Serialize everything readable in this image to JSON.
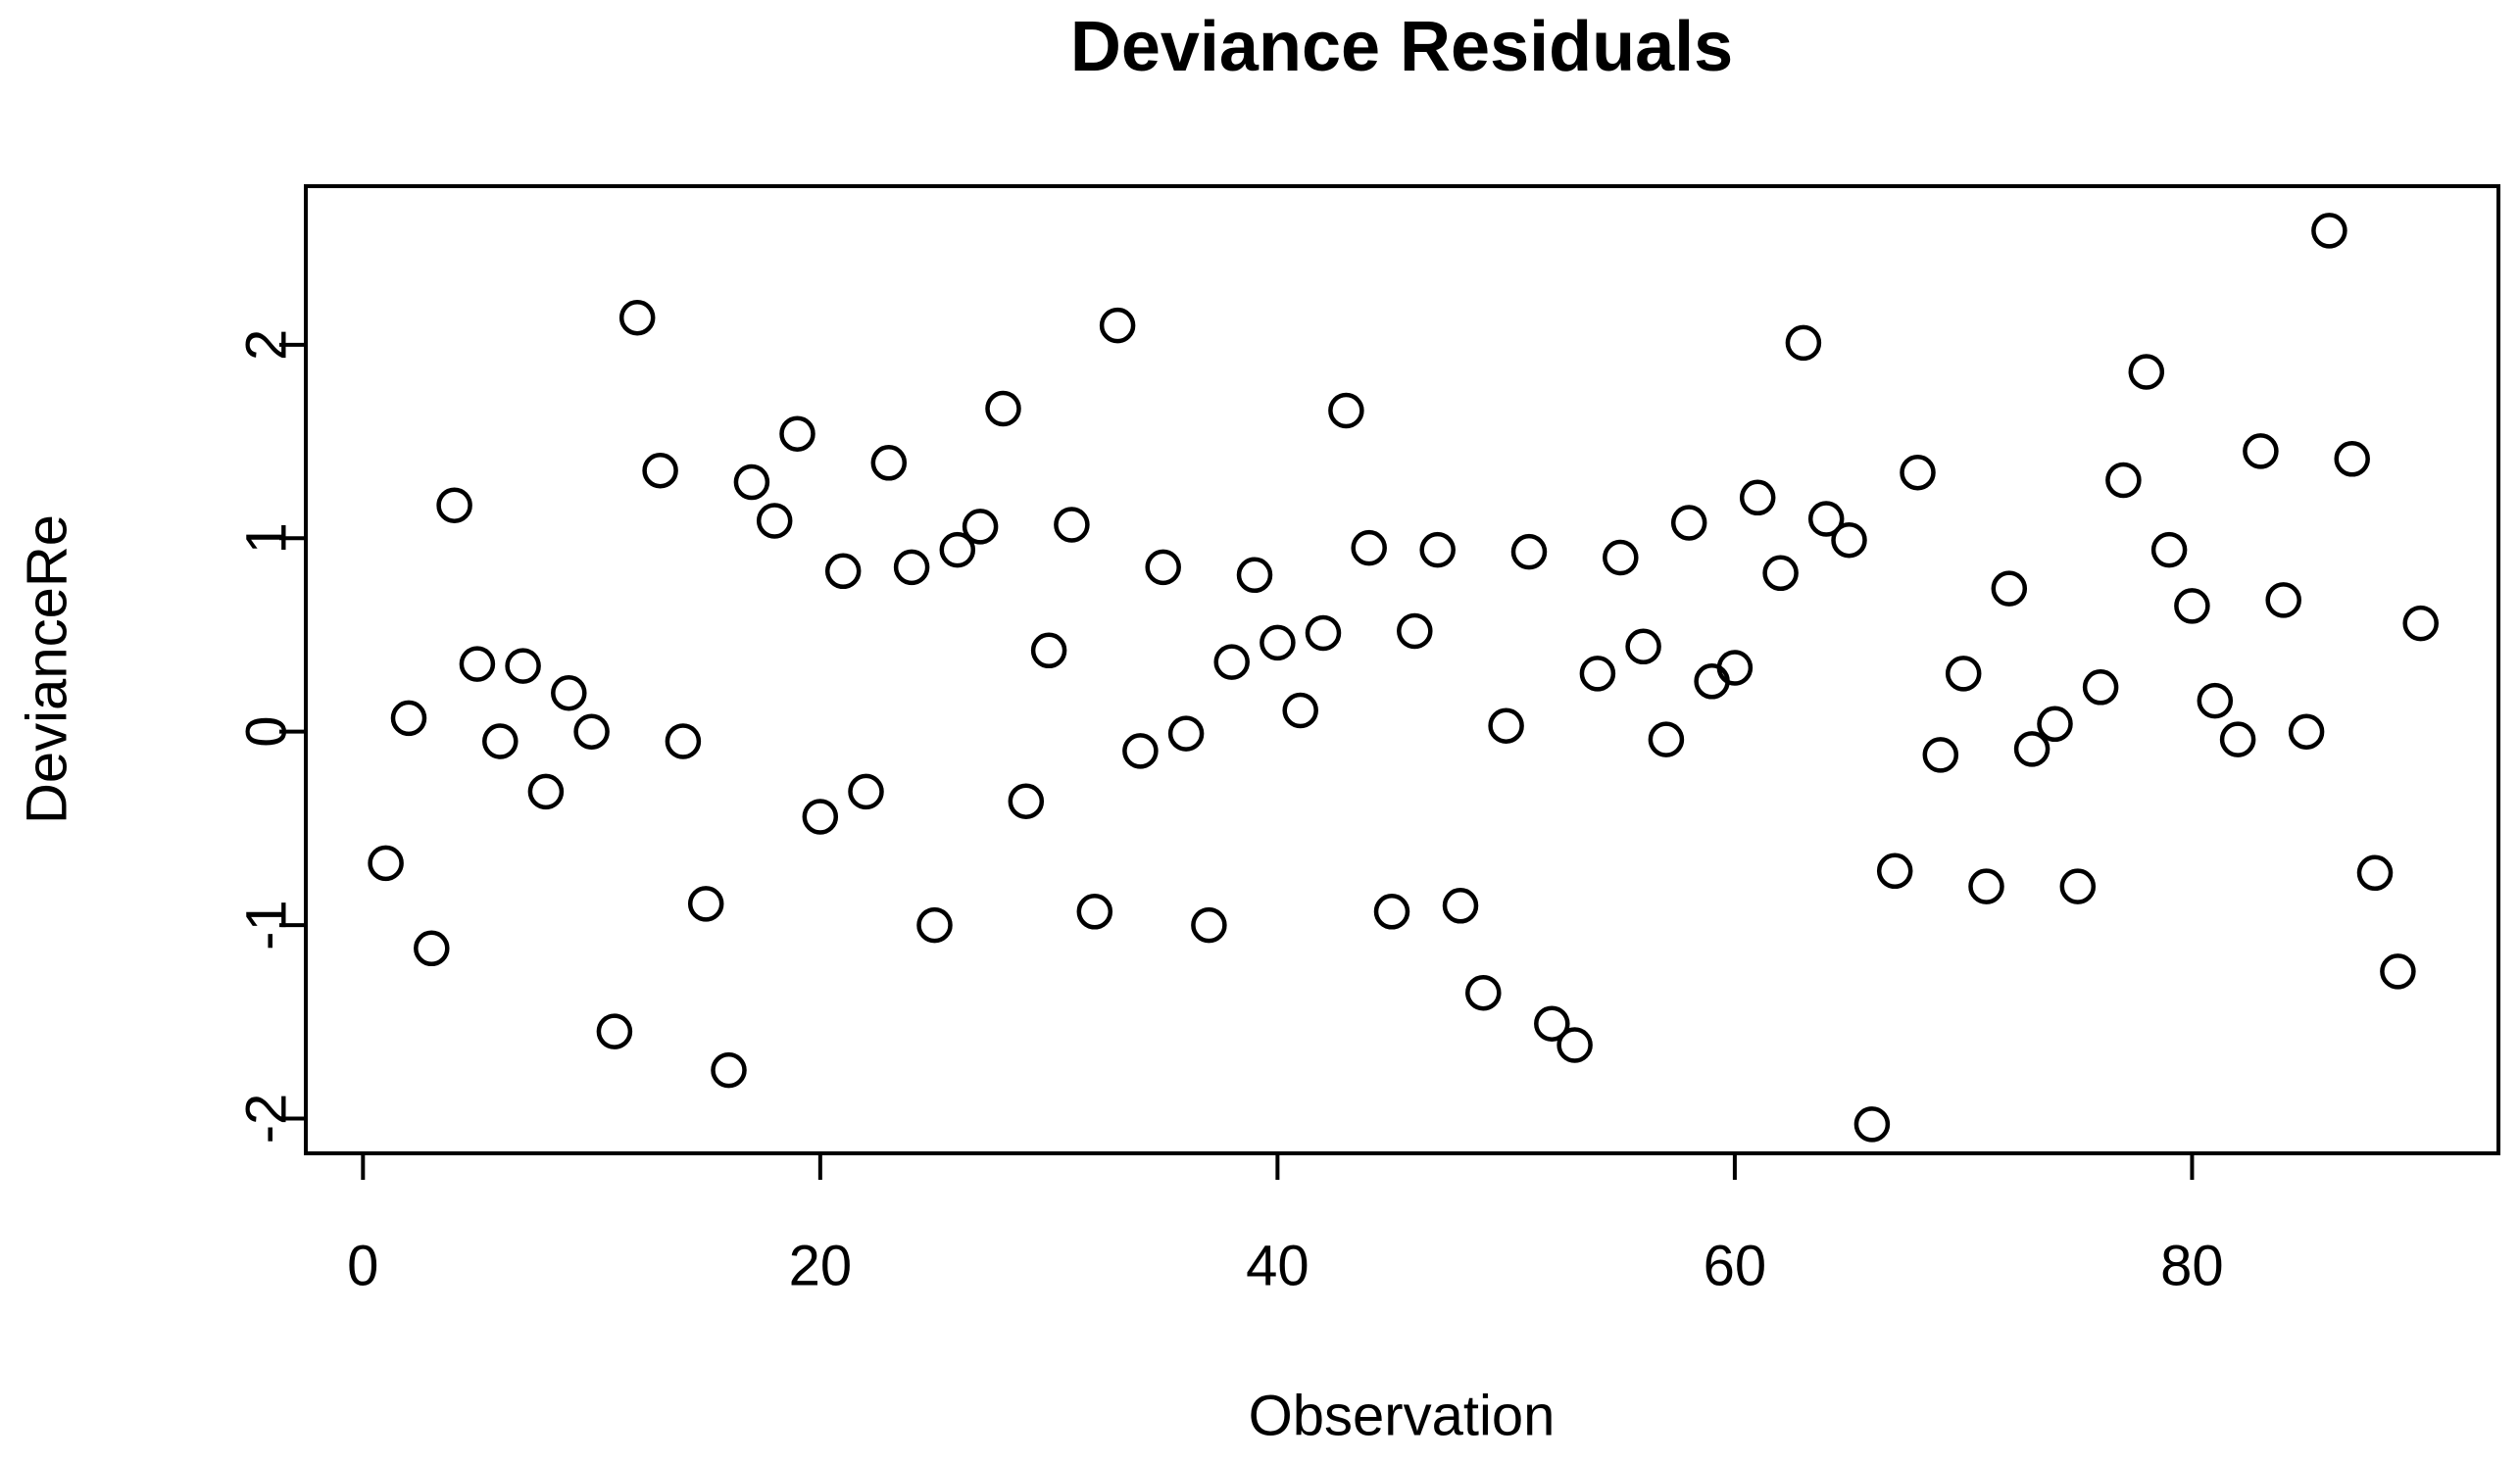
{
  "title": "Deviance Residuals",
  "colors": {
    "background": "#ffffff",
    "foreground": "#000000",
    "marker_stroke": "#000000",
    "marker_fill": "none"
  },
  "chart_data": {
    "type": "scatter",
    "title": "Deviance Residuals",
    "xlabel": "Observation",
    "ylabel": "DevianceRe",
    "marker": "open-circle",
    "grid": false,
    "legend": null,
    "xlim": [
      -2.5,
      93.4
    ],
    "ylim": [
      -2.18,
      2.82
    ],
    "xticks": [
      0,
      20,
      40,
      60,
      80
    ],
    "yticks": [
      -2,
      -1,
      0,
      1,
      2
    ],
    "xtick_labels": [
      "0",
      "20",
      "40",
      "60",
      "80"
    ],
    "ytick_labels": [
      "-2",
      "-1",
      "0",
      "1",
      "2"
    ],
    "x": [
      1,
      2,
      3,
      4,
      5,
      6,
      7,
      8,
      9,
      10,
      11,
      12,
      13,
      14,
      15,
      16,
      17,
      18,
      19,
      20,
      21,
      22,
      23,
      24,
      25,
      26,
      27,
      28,
      29,
      30,
      31,
      32,
      33,
      34,
      35,
      36,
      37,
      38,
      39,
      40,
      41,
      42,
      43,
      44,
      45,
      46,
      47,
      48,
      49,
      50,
      51,
      52,
      53,
      54,
      55,
      56,
      57,
      58,
      59,
      60,
      61,
      62,
      63,
      64,
      65,
      66,
      67,
      68,
      69,
      70,
      71,
      72,
      73,
      74,
      75,
      76,
      77,
      78,
      79,
      80,
      81,
      82,
      83,
      84,
      85,
      86,
      87,
      88,
      89,
      90
    ],
    "y": [
      -0.68,
      0.07,
      -1.12,
      1.17,
      0.35,
      -0.05,
      0.34,
      -0.31,
      0.2,
      0.0,
      -1.55,
      2.14,
      1.35,
      -0.05,
      -0.89,
      -1.75,
      1.29,
      1.09,
      1.54,
      -0.44,
      0.83,
      -0.31,
      1.39,
      0.85,
      -1.0,
      0.94,
      1.06,
      1.67,
      -0.36,
      0.42,
      1.07,
      -0.93,
      2.1,
      -0.1,
      0.85,
      -0.01,
      -1.0,
      0.36,
      0.81,
      0.46,
      0.11,
      0.51,
      1.66,
      0.95,
      -0.93,
      0.52,
      0.94,
      -0.9,
      -1.35,
      0.03,
      0.93,
      -1.51,
      -1.62,
      0.3,
      0.9,
      0.44,
      -0.04,
      1.08,
      0.26,
      0.33,
      1.21,
      0.82,
      2.01,
      1.1,
      0.99,
      -2.03,
      -0.72,
      1.34,
      -0.12,
      0.3,
      -0.8,
      0.74,
      -0.09,
      0.04,
      -0.8,
      0.23,
      1.3,
      1.86,
      0.94,
      0.65,
      0.16,
      -0.04,
      1.45,
      0.68,
      0.0,
      2.59,
      1.41,
      -0.73,
      -1.24,
      0.56
    ]
  }
}
